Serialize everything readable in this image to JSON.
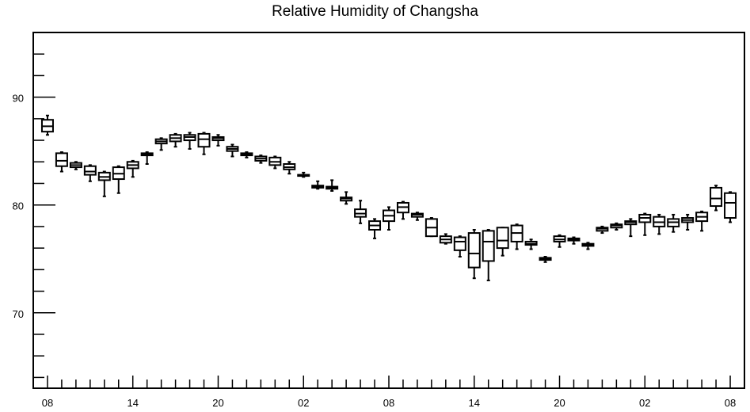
{
  "chart_data": {
    "type": "boxplot",
    "title": "Relative Humidity of Changsha",
    "xlabel": "",
    "ylabel": "",
    "ylim": [
      63,
      96
    ],
    "y_ticks": [
      70,
      80,
      90
    ],
    "y_minor_step": 2,
    "x_tick_labels": [
      "08",
      "14",
      "20",
      "02",
      "08",
      "14",
      "20",
      "02",
      "08"
    ],
    "x_tick_positions": [
      0,
      6,
      12,
      18,
      24,
      30,
      36,
      42,
      48
    ],
    "x_range": [
      -1,
      49
    ],
    "grid": false,
    "boxes": [
      {
        "x": 0,
        "min": 86.5,
        "q1": 86.8,
        "med": 87.3,
        "q3": 87.9,
        "max": 88.3
      },
      {
        "x": 1,
        "min": 83.1,
        "q1": 83.6,
        "med": 84.1,
        "q3": 84.8,
        "max": 84.9
      },
      {
        "x": 2,
        "min": 83.3,
        "q1": 83.5,
        "med": 83.7,
        "q3": 83.9,
        "max": 84.0
      },
      {
        "x": 3,
        "min": 82.2,
        "q1": 82.8,
        "med": 83.1,
        "q3": 83.6,
        "max": 83.7
      },
      {
        "x": 4,
        "min": 80.8,
        "q1": 82.3,
        "med": 82.6,
        "q3": 83.0,
        "max": 83.1
      },
      {
        "x": 5,
        "min": 81.1,
        "q1": 82.4,
        "med": 82.9,
        "q3": 83.5,
        "max": 83.6
      },
      {
        "x": 6,
        "min": 82.6,
        "q1": 83.4,
        "med": 83.7,
        "q3": 84.0,
        "max": 84.1
      },
      {
        "x": 7,
        "min": 83.8,
        "q1": 84.6,
        "med": 84.7,
        "q3": 84.8,
        "max": 84.9
      },
      {
        "x": 8,
        "min": 85.1,
        "q1": 85.7,
        "med": 85.9,
        "q3": 86.1,
        "max": 86.2
      },
      {
        "x": 9,
        "min": 85.4,
        "q1": 85.9,
        "med": 86.2,
        "q3": 86.5,
        "max": 86.6
      },
      {
        "x": 10,
        "min": 85.2,
        "q1": 86.0,
        "med": 86.3,
        "q3": 86.5,
        "max": 86.7
      },
      {
        "x": 11,
        "min": 84.7,
        "q1": 85.4,
        "med": 86.1,
        "q3": 86.6,
        "max": 86.7
      },
      {
        "x": 12,
        "min": 85.5,
        "q1": 86.0,
        "med": 86.2,
        "q3": 86.3,
        "max": 86.5
      },
      {
        "x": 13,
        "min": 84.5,
        "q1": 85.0,
        "med": 85.2,
        "q3": 85.4,
        "max": 85.6
      },
      {
        "x": 14,
        "min": 84.4,
        "q1": 84.6,
        "med": 84.7,
        "q3": 84.8,
        "max": 84.9
      },
      {
        "x": 15,
        "min": 83.9,
        "q1": 84.1,
        "med": 84.3,
        "q3": 84.5,
        "max": 84.6
      },
      {
        "x": 16,
        "min": 83.4,
        "q1": 83.7,
        "med": 84.0,
        "q3": 84.4,
        "max": 84.5
      },
      {
        "x": 17,
        "min": 82.9,
        "q1": 83.3,
        "med": 83.5,
        "q3": 83.8,
        "max": 84.0
      },
      {
        "x": 18,
        "min": 82.6,
        "q1": 82.7,
        "med": 82.7,
        "q3": 82.8,
        "max": 83.0
      },
      {
        "x": 19,
        "min": 81.5,
        "q1": 81.6,
        "med": 81.7,
        "q3": 81.8,
        "max": 82.2
      },
      {
        "x": 20,
        "min": 81.3,
        "q1": 81.5,
        "med": 81.6,
        "q3": 81.7,
        "max": 82.3
      },
      {
        "x": 21,
        "min": 80.1,
        "q1": 80.4,
        "med": 80.6,
        "q3": 80.7,
        "max": 81.2
      },
      {
        "x": 22,
        "min": 78.3,
        "q1": 78.9,
        "med": 79.2,
        "q3": 79.6,
        "max": 80.4
      },
      {
        "x": 23,
        "min": 76.9,
        "q1": 77.7,
        "med": 78.1,
        "q3": 78.5,
        "max": 78.7
      },
      {
        "x": 24,
        "min": 77.7,
        "q1": 78.5,
        "med": 79.0,
        "q3": 79.5,
        "max": 79.8
      },
      {
        "x": 25,
        "min": 78.7,
        "q1": 79.3,
        "med": 79.8,
        "q3": 80.2,
        "max": 80.3
      },
      {
        "x": 26,
        "min": 78.6,
        "q1": 78.9,
        "med": 79.1,
        "q3": 79.2,
        "max": 79.3
      },
      {
        "x": 27,
        "min": 77.1,
        "q1": 77.1,
        "med": 77.9,
        "q3": 78.7,
        "max": 78.8
      },
      {
        "x": 28,
        "min": 76.4,
        "q1": 76.5,
        "med": 76.8,
        "q3": 77.1,
        "max": 77.3
      },
      {
        "x": 29,
        "min": 75.2,
        "q1": 75.8,
        "med": 76.6,
        "q3": 77.0,
        "max": 77.1
      },
      {
        "x": 30,
        "min": 73.2,
        "q1": 74.2,
        "med": 75.5,
        "q3": 77.4,
        "max": 77.7
      },
      {
        "x": 31,
        "min": 73.0,
        "q1": 74.8,
        "med": 76.6,
        "q3": 77.6,
        "max": 77.7
      },
      {
        "x": 32,
        "min": 75.3,
        "q1": 76.0,
        "med": 76.7,
        "q3": 77.9,
        "max": 77.9
      },
      {
        "x": 33,
        "min": 75.9,
        "q1": 76.6,
        "med": 77.4,
        "q3": 78.1,
        "max": 78.2
      },
      {
        "x": 34,
        "min": 75.9,
        "q1": 76.3,
        "med": 76.4,
        "q3": 76.6,
        "max": 76.8
      },
      {
        "x": 35,
        "min": 74.7,
        "q1": 74.9,
        "med": 75.0,
        "q3": 75.1,
        "max": 75.2
      },
      {
        "x": 36,
        "min": 76.1,
        "q1": 76.6,
        "med": 76.8,
        "q3": 77.1,
        "max": 77.2
      },
      {
        "x": 37,
        "min": 76.4,
        "q1": 76.7,
        "med": 76.8,
        "q3": 76.9,
        "max": 77.0
      },
      {
        "x": 38,
        "min": 75.9,
        "q1": 76.2,
        "med": 76.3,
        "q3": 76.4,
        "max": 76.5
      },
      {
        "x": 39,
        "min": 77.4,
        "q1": 77.6,
        "med": 77.8,
        "q3": 77.9,
        "max": 78.0
      },
      {
        "x": 40,
        "min": 77.7,
        "q1": 77.9,
        "med": 78.1,
        "q3": 78.2,
        "max": 78.3
      },
      {
        "x": 41,
        "min": 77.1,
        "q1": 78.2,
        "med": 78.4,
        "q3": 78.5,
        "max": 78.7
      },
      {
        "x": 42,
        "min": 77.2,
        "q1": 78.4,
        "med": 78.8,
        "q3": 79.1,
        "max": 79.2
      },
      {
        "x": 43,
        "min": 77.3,
        "q1": 78.0,
        "med": 78.4,
        "q3": 78.9,
        "max": 79.1
      },
      {
        "x": 44,
        "min": 77.5,
        "q1": 78.0,
        "med": 78.4,
        "q3": 78.7,
        "max": 79.1
      },
      {
        "x": 45,
        "min": 77.7,
        "q1": 78.4,
        "med": 78.6,
        "q3": 78.8,
        "max": 79.1
      },
      {
        "x": 46,
        "min": 77.6,
        "q1": 78.5,
        "med": 78.9,
        "q3": 79.3,
        "max": 79.4
      },
      {
        "x": 47,
        "min": 79.5,
        "q1": 79.9,
        "med": 80.6,
        "q3": 81.6,
        "max": 81.8
      },
      {
        "x": 48,
        "min": 78.4,
        "q1": 78.8,
        "med": 80.2,
        "q3": 81.1,
        "max": 81.2
      }
    ]
  }
}
